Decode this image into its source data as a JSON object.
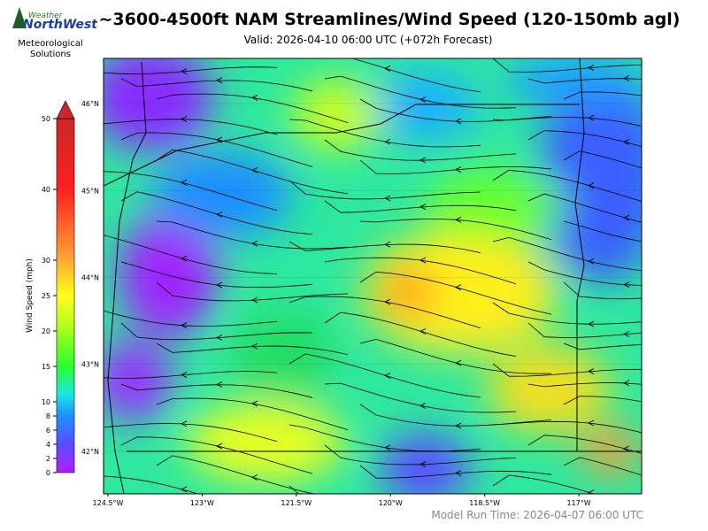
{
  "header": {
    "logo_top": "Weather",
    "logo_main": "NorthWest",
    "logo_sub": "Meteorological Solutions",
    "title": "~3600-4500ft NAM Streamlines/Wind Speed (120-150mb agl)",
    "subtitle": "Valid: 2026-04-10 06:00 UTC  (+072h Forecast)"
  },
  "colorbar": {
    "label": "Wind Speed (mph)",
    "lim": [
      0,
      50
    ],
    "ticks": [
      0,
      2,
      4,
      6,
      8,
      10,
      15,
      20,
      25,
      30,
      40,
      50
    ]
  },
  "map": {
    "xlim": [
      -124.57,
      -116.0
    ],
    "ylim": [
      41.51,
      46.52
    ],
    "xticks": [
      {
        "value": -124.5,
        "label": "124.5°W"
      },
      {
        "value": -123,
        "label": "123°W"
      },
      {
        "value": -121.5,
        "label": "121.5°W"
      },
      {
        "value": -120,
        "label": "120°W"
      },
      {
        "value": -118.5,
        "label": "118.5°W"
      },
      {
        "value": -117,
        "label": "117°W"
      }
    ],
    "yticks": [
      {
        "value": 42,
        "label": "42°N"
      },
      {
        "value": 43,
        "label": "43°N"
      },
      {
        "value": 44,
        "label": "44°N"
      },
      {
        "value": 45,
        "label": "45°N"
      },
      {
        "value": 46,
        "label": "46°N"
      }
    ]
  },
  "footer": {
    "model_run": "Model Run Time: 2026-04-07 06:00 UTC"
  }
}
